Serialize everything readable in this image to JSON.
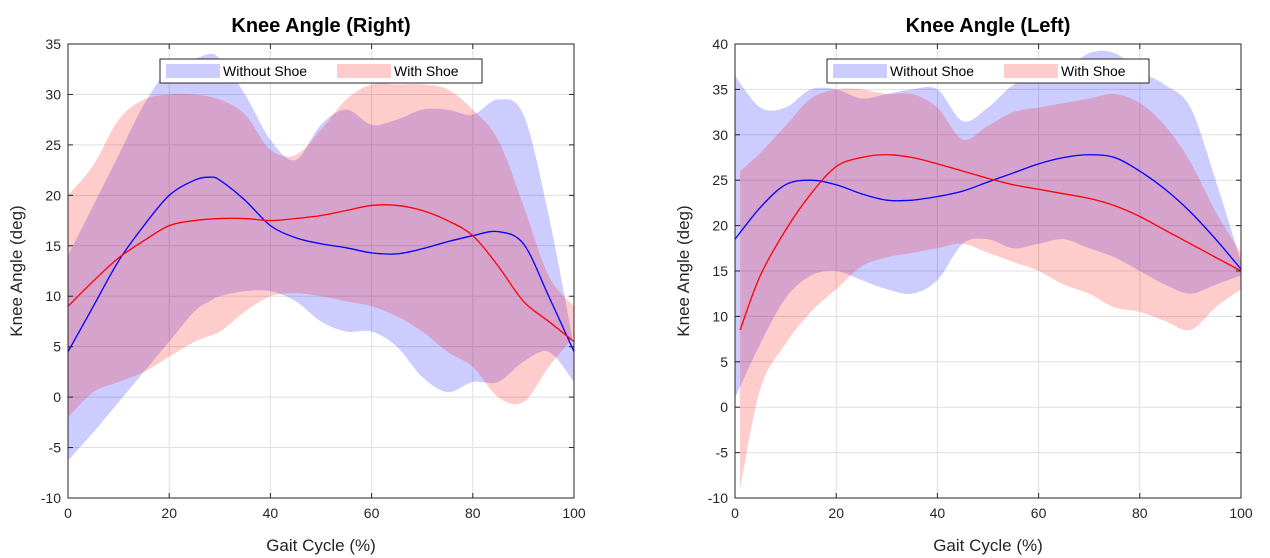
{
  "chart_data": [
    {
      "type": "line",
      "title": "Knee Angle (Right)",
      "xlabel": "Gait Cycle (%)",
      "ylabel": "Knee Angle (deg)",
      "xlim": [
        0,
        100
      ],
      "ylim": [
        -10,
        35
      ],
      "xticks": [
        0,
        20,
        40,
        60,
        80,
        100
      ],
      "yticks": [
        -10,
        -5,
        0,
        5,
        10,
        15,
        20,
        25,
        30,
        35
      ],
      "grid": true,
      "legend_position": "top-center",
      "series": [
        {
          "name": "Without Shoe",
          "color": "#0000ff",
          "band_color": "#ccccff",
          "x": [
            0,
            5,
            10,
            15,
            20,
            25,
            28,
            30,
            35,
            40,
            45,
            50,
            55,
            60,
            65,
            70,
            75,
            80,
            85,
            90,
            95,
            100
          ],
          "mean": [
            4.5,
            9,
            13.5,
            17,
            20,
            21.5,
            21.8,
            21.5,
            19.5,
            17,
            15.8,
            15.2,
            14.8,
            14.3,
            14.2,
            14.7,
            15.4,
            16,
            16.4,
            15.2,
            10,
            4.5
          ],
          "upper": [
            14,
            19,
            24,
            29,
            32.5,
            33.5,
            34,
            33.5,
            30,
            25.5,
            23.5,
            27,
            28.5,
            27,
            27.5,
            28.5,
            28.5,
            28,
            29.5,
            28,
            18,
            5
          ],
          "lower": [
            -6.3,
            -3.5,
            -0.5,
            2.5,
            5.5,
            8.5,
            9.5,
            10,
            10.5,
            10.5,
            9.5,
            7.5,
            6.5,
            6.5,
            5,
            2,
            0.5,
            1.5,
            1.5,
            3.5,
            4.5,
            1.5
          ]
        },
        {
          "name": "With Shoe",
          "color": "#ff0000",
          "band_color": "#ffcccc",
          "x": [
            0,
            5,
            10,
            15,
            20,
            25,
            30,
            35,
            40,
            45,
            50,
            55,
            60,
            65,
            70,
            75,
            80,
            85,
            90,
            95,
            100
          ],
          "mean": [
            9,
            11.5,
            13.8,
            15.5,
            17,
            17.5,
            17.7,
            17.7,
            17.5,
            17.7,
            18,
            18.5,
            19,
            19,
            18.5,
            17.5,
            16,
            13,
            9.5,
            7.5,
            5.5
          ],
          "upper": [
            20,
            23,
            27.5,
            29.5,
            30,
            30,
            29.5,
            28,
            24.5,
            24,
            26.5,
            29.5,
            31,
            31,
            31,
            30.5,
            28.5,
            25.5,
            19,
            12,
            9
          ],
          "lower": [
            -2,
            0.5,
            1.5,
            2.5,
            4,
            5.5,
            6.5,
            8.5,
            10,
            10.3,
            10,
            9.5,
            9,
            8,
            6.5,
            4.5,
            3,
            0,
            -0.5,
            3,
            6
          ]
        }
      ]
    },
    {
      "type": "line",
      "title": "Knee Angle (Left)",
      "xlabel": "Gait Cycle (%)",
      "ylabel": "Knee Angle (deg)",
      "xlim": [
        0,
        100
      ],
      "ylim": [
        -10,
        40
      ],
      "xticks": [
        0,
        20,
        40,
        60,
        80,
        100
      ],
      "yticks": [
        -10,
        -5,
        0,
        5,
        10,
        15,
        20,
        25,
        30,
        35,
        40
      ],
      "grid": true,
      "legend_position": "top-center",
      "series": [
        {
          "name": "Without Shoe",
          "color": "#0000ff",
          "band_color": "#ccccff",
          "x": [
            0,
            5,
            10,
            15,
            20,
            25,
            30,
            35,
            40,
            45,
            50,
            55,
            60,
            65,
            70,
            75,
            80,
            85,
            90,
            95,
            100
          ],
          "mean": [
            18.5,
            22,
            24.5,
            25,
            24.5,
            23.5,
            22.8,
            22.8,
            23.2,
            23.8,
            24.8,
            25.8,
            26.8,
            27.5,
            27.8,
            27.5,
            26,
            24,
            21.5,
            18.5,
            15.2
          ],
          "upper": [
            36.5,
            33,
            33,
            35,
            35,
            34,
            34.5,
            35,
            35,
            31.5,
            33,
            35.5,
            36.5,
            37,
            39,
            39,
            37,
            35.5,
            33,
            25,
            16
          ],
          "lower": [
            1,
            7,
            12,
            14.5,
            15,
            14,
            13,
            12.5,
            14,
            18,
            18.5,
            17.5,
            18,
            18.5,
            17.5,
            16.5,
            15,
            13.5,
            12.5,
            13.5,
            14.5
          ]
        },
        {
          "name": "With Shoe",
          "color": "#ff0000",
          "band_color": "#ffcccc",
          "x": [
            1,
            5,
            10,
            15,
            20,
            25,
            30,
            35,
            40,
            45,
            50,
            55,
            60,
            65,
            70,
            75,
            80,
            85,
            90,
            95,
            100
          ],
          "mean": [
            8.5,
            14.5,
            19.5,
            23.5,
            26.5,
            27.5,
            27.8,
            27.5,
            26.8,
            26,
            25.2,
            24.5,
            24,
            23.5,
            23,
            22.2,
            21,
            19.5,
            18,
            16.5,
            15
          ],
          "upper": [
            26,
            28,
            31,
            34,
            35,
            35,
            34.5,
            34.5,
            33,
            29.5,
            31,
            32.5,
            33,
            33.5,
            34,
            34.5,
            33.5,
            31,
            27,
            21.5,
            17
          ],
          "lower": [
            -9,
            2,
            7,
            10.5,
            13,
            15.5,
            16.5,
            17,
            17.5,
            18,
            17,
            16,
            15,
            13.5,
            12.5,
            11,
            10.5,
            9.5,
            8.5,
            11,
            13
          ]
        }
      ]
    }
  ]
}
